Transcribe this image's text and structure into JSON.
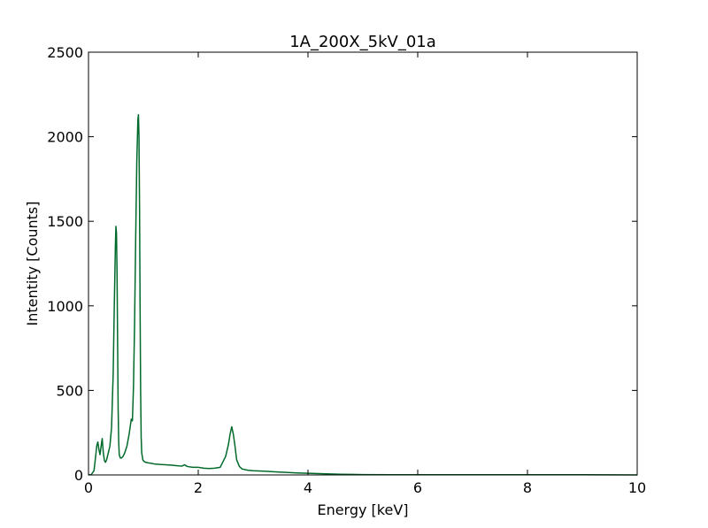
{
  "chart_data": {
    "type": "line",
    "title": "1A_200X_5kV_01a",
    "xlabel": "Energy [keV]",
    "ylabel": "Intentity [Counts]",
    "xlim": [
      0,
      10
    ],
    "ylim": [
      0,
      2500
    ],
    "xticks": [
      0,
      2,
      4,
      6,
      8,
      10
    ],
    "yticks": [
      0,
      500,
      1000,
      1500,
      2000,
      2500
    ],
    "grid": false,
    "legend": "none",
    "colors": {
      "line": "#006a2b",
      "axes": "#000000",
      "background": "#ffffff"
    },
    "series": [
      {
        "x": [
          0.0,
          0.05,
          0.1,
          0.12,
          0.15,
          0.17,
          0.19,
          0.21,
          0.23,
          0.25,
          0.27,
          0.29,
          0.31,
          0.33,
          0.36,
          0.39,
          0.42,
          0.45,
          0.47,
          0.49,
          0.5,
          0.51,
          0.52,
          0.53,
          0.54,
          0.55,
          0.56,
          0.58,
          0.6,
          0.63,
          0.66,
          0.7,
          0.74,
          0.78,
          0.8,
          0.82,
          0.84,
          0.86,
          0.88,
          0.9,
          0.91,
          0.92,
          0.93,
          0.94,
          0.95,
          0.96,
          0.97,
          0.99,
          1.01,
          1.04,
          1.08,
          1.12,
          1.2,
          1.3,
          1.4,
          1.5,
          1.6,
          1.7,
          1.75,
          1.8,
          1.9,
          2.0,
          2.1,
          2.2,
          2.3,
          2.4,
          2.5,
          2.55,
          2.58,
          2.61,
          2.64,
          2.67,
          2.7,
          2.75,
          2.8,
          2.9,
          3.0,
          3.2,
          3.4,
          3.6,
          3.8,
          4.0,
          4.2,
          4.4,
          4.6,
          4.8,
          5.0,
          5.5,
          6.0,
          7.0,
          8.0,
          9.0,
          10.0
        ],
        "y": [
          0,
          2,
          25,
          80,
          170,
          195,
          150,
          120,
          170,
          215,
          130,
          85,
          75,
          90,
          130,
          170,
          280,
          600,
          1000,
          1350,
          1470,
          1430,
          1200,
          800,
          400,
          200,
          120,
          100,
          100,
          110,
          130,
          170,
          240,
          330,
          320,
          520,
          900,
          1400,
          1850,
          2100,
          2130,
          2000,
          1600,
          1000,
          500,
          220,
          130,
          90,
          80,
          75,
          72,
          70,
          65,
          62,
          60,
          58,
          55,
          52,
          60,
          50,
          45,
          45,
          40,
          38,
          40,
          45,
          110,
          180,
          240,
          285,
          240,
          170,
          90,
          50,
          35,
          28,
          25,
          22,
          18,
          15,
          12,
          10,
          8,
          6,
          4,
          3,
          2,
          1,
          1,
          1,
          1,
          1,
          0
        ]
      }
    ]
  }
}
